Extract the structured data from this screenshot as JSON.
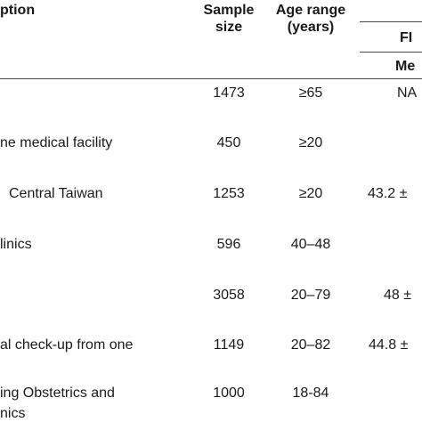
{
  "header": {
    "description": "ption",
    "sample_size_line1": "Sample",
    "sample_size_line2": "size",
    "age_range_line1": "Age range",
    "age_range_line2": "(years)",
    "fi_label": "FI",
    "fi_stat": "Me"
  },
  "rows": [
    {
      "description": "",
      "sample_size": "1473",
      "age_range": "≥65",
      "fi": "NA"
    },
    {
      "description": "ne medical facility",
      "sample_size": "450",
      "age_range": "≥20",
      "fi": ""
    },
    {
      "description": "Central Taiwan",
      "sample_size": "1253",
      "age_range": "≥20",
      "fi": "43.2 ±"
    },
    {
      "description": "linics",
      "sample_size": "596",
      "age_range": "40–48",
      "fi": ""
    },
    {
      "description": "",
      "sample_size": "3058",
      "age_range": "20–79",
      "fi": "48 ±"
    },
    {
      "description": "al check-up from one",
      "sample_size": "1149",
      "age_range": "20–82",
      "fi": "44.8 ±"
    },
    {
      "description": "ing Obstetrics and",
      "sample_size": "1000",
      "age_range": "18-84",
      "fi": ""
    },
    {
      "description": "nics",
      "sample_size": "",
      "age_range": "",
      "fi": ""
    }
  ]
}
